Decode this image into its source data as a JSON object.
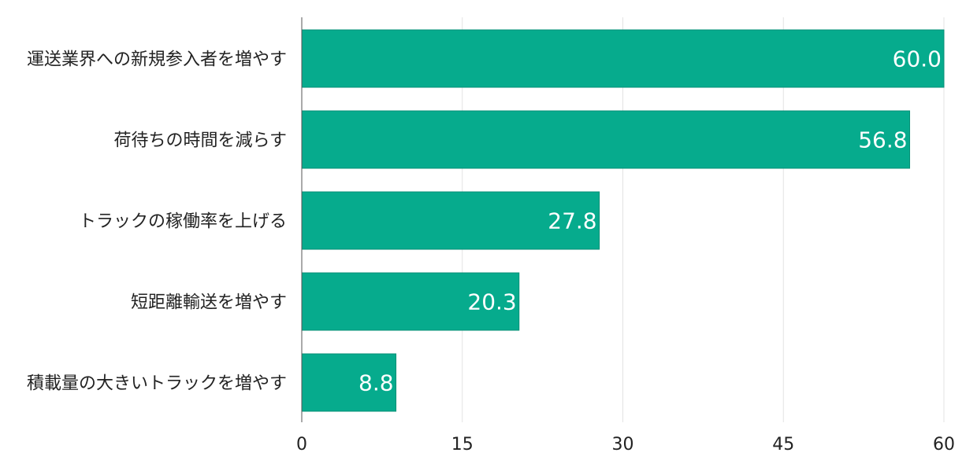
{
  "chart_data": {
    "type": "bar",
    "orientation": "horizontal",
    "categories": [
      "運送業界への新規参入者を増やす",
      "荷待ちの時間を減らす",
      "トラックの稼働率を上げる",
      "短距離輸送を増やす",
      "積載量の大きいトラックを増やす"
    ],
    "values": [
      60.0,
      56.8,
      27.8,
      20.3,
      8.8
    ],
    "value_labels": [
      "60.0",
      "56.8",
      "27.8",
      "20.3",
      "8.8"
    ],
    "xlim": [
      0,
      60
    ],
    "xticks": [
      0,
      15,
      30,
      45,
      60
    ],
    "xtick_labels": [
      "0",
      "15",
      "30",
      "45",
      "60"
    ],
    "grid": "vertical",
    "title": "",
    "xlabel": "",
    "ylabel": "",
    "colors": {
      "bar": "#06AB8D",
      "bar_edge": "#058f76",
      "grid": "#e3e3e3",
      "axis": "#555555",
      "value_text": "#ffffff",
      "label_text": "#222222"
    }
  }
}
